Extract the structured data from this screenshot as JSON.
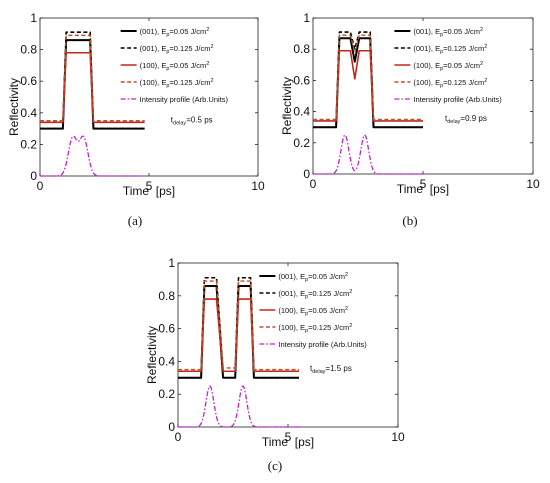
{
  "figure": {
    "background": "#ffffff",
    "series_styles": [
      {
        "color": "#000000",
        "dash": "",
        "width": 2.0
      },
      {
        "color": "#000000",
        "dash": "4,2.5",
        "width": 1.6
      },
      {
        "color": "#c0281c",
        "dash": "",
        "width": 1.6
      },
      {
        "color": "#b8542a",
        "dash": "4,2.5",
        "width": 1.4
      },
      {
        "color": "#c020d0",
        "dash": "5,2,1.5,2",
        "width": 1.3
      }
    ]
  },
  "chart_data": [
    {
      "panel_label": "(a)",
      "type": "line",
      "xlabel": "Time  [ps]",
      "ylabel": "Reflectivity",
      "xlim": [
        0,
        10
      ],
      "ylim": [
        0,
        1
      ],
      "x_ticks": [
        "0",
        "5",
        "10"
      ],
      "y_ticks": [
        "0",
        "0.2",
        "0.4",
        "0.6",
        "0.8",
        "1"
      ],
      "annotation": {
        "text": "t",
        "sub": "delay",
        "suffix": "=0.5 ps"
      },
      "legend_position": "top-right",
      "series": [
        {
          "label": "(001), E",
          "label_sub": "p",
          "label_rest": "=0.05 J/cm",
          "label_sup": "2",
          "x": [
            0,
            1.05,
            1.2,
            2.3,
            2.45,
            4.8
          ],
          "y": [
            0.3,
            0.3,
            0.86,
            0.86,
            0.3,
            0.3
          ]
        },
        {
          "label": "(001), E",
          "label_sub": "p",
          "label_rest": "=0.125 J/cm",
          "label_sup": "2",
          "x": [
            0,
            1.05,
            1.2,
            2.3,
            2.45,
            4.8
          ],
          "y": [
            0.3,
            0.3,
            0.91,
            0.91,
            0.3,
            0.3
          ]
        },
        {
          "label": "(100), E",
          "label_sub": "p",
          "label_rest": "=0.05 J/cm",
          "label_sup": "2",
          "x": [
            0,
            1.05,
            1.2,
            2.3,
            2.45,
            4.8
          ],
          "y": [
            0.34,
            0.34,
            0.78,
            0.78,
            0.34,
            0.34
          ]
        },
        {
          "label": "(100), E",
          "label_sub": "p",
          "label_rest": "=0.125 J/cm",
          "label_sup": "2",
          "x": [
            0,
            1.05,
            1.2,
            2.3,
            2.45,
            4.8
          ],
          "y": [
            0.35,
            0.35,
            0.89,
            0.89,
            0.35,
            0.35
          ]
        },
        {
          "label": "Intensity profile (Arb.Units)",
          "pulses": [
            1.5,
            2.0
          ],
          "pulse_height": 0.24,
          "pulse_sigma": 0.2,
          "x_range": [
            0,
            4.8
          ]
        }
      ]
    },
    {
      "panel_label": "(b)",
      "type": "line",
      "xlabel": "Time  [ps]",
      "ylabel": "Reflectivity",
      "xlim": [
        0,
        10
      ],
      "ylim": [
        0,
        1
      ],
      "x_ticks": [
        "0",
        "5",
        "10"
      ],
      "y_ticks": [
        "0",
        "0.2",
        "0.4",
        "0.6",
        "0.8",
        "1"
      ],
      "annotation": {
        "text": "t",
        "sub": "delay",
        "suffix": "=0.9 ps"
      },
      "legend_position": "top-right",
      "series": [
        {
          "label": "(001), E",
          "label_sub": "p",
          "label_rest": "=0.05 J/cm",
          "label_sup": "2",
          "x": [
            0,
            1.05,
            1.2,
            1.7,
            1.9,
            2.1,
            2.6,
            2.75,
            5
          ],
          "y": [
            0.3,
            0.3,
            0.87,
            0.87,
            0.72,
            0.87,
            0.87,
            0.3,
            0.3
          ]
        },
        {
          "label": "(001), E",
          "label_sub": "p",
          "label_rest": "=0.125 J/cm",
          "label_sup": "2",
          "x": [
            0,
            1.05,
            1.2,
            1.7,
            1.9,
            2.1,
            2.6,
            2.75,
            5
          ],
          "y": [
            0.3,
            0.3,
            0.91,
            0.91,
            0.8,
            0.91,
            0.91,
            0.3,
            0.3
          ]
        },
        {
          "label": "(100), E",
          "label_sub": "p",
          "label_rest": "=0.05 J/cm",
          "label_sup": "2",
          "x": [
            0,
            1.05,
            1.2,
            1.7,
            1.9,
            2.1,
            2.6,
            2.75,
            5
          ],
          "y": [
            0.34,
            0.34,
            0.79,
            0.79,
            0.61,
            0.79,
            0.79,
            0.34,
            0.34
          ]
        },
        {
          "label": "(100), E",
          "label_sub": "p",
          "label_rest": "=0.125 J/cm",
          "label_sup": "2",
          "x": [
            0,
            1.05,
            1.2,
            1.7,
            1.9,
            2.1,
            2.6,
            2.75,
            5
          ],
          "y": [
            0.35,
            0.35,
            0.89,
            0.89,
            0.78,
            0.89,
            0.89,
            0.35,
            0.35
          ]
        },
        {
          "label": "Intensity profile (Arb.Units)",
          "pulses": [
            1.45,
            2.35
          ],
          "pulse_height": 0.25,
          "pulse_sigma": 0.18,
          "x_range": [
            0,
            5
          ]
        }
      ]
    },
    {
      "panel_label": "(c)",
      "type": "line",
      "xlabel": "Time  [ps]",
      "ylabel": "Reflectivity",
      "xlim": [
        0,
        10
      ],
      "ylim": [
        0,
        1
      ],
      "x_ticks": [
        "0",
        "5",
        "10"
      ],
      "y_ticks": [
        "0",
        "0.2",
        "0.4",
        "0.6",
        "0.8",
        "1"
      ],
      "annotation": {
        "text": "t",
        "sub": "delay",
        "suffix": "=1.5 ps"
      },
      "legend_position": "top-right",
      "series": [
        {
          "label": "(001), E",
          "label_sub": "p",
          "label_rest": "=0.05 J/cm",
          "label_sup": "2",
          "x": [
            0,
            1.05,
            1.2,
            1.75,
            2.05,
            2.3,
            2.6,
            2.75,
            3.3,
            3.45,
            5.5
          ],
          "y": [
            0.3,
            0.3,
            0.86,
            0.86,
            0.3,
            0.3,
            0.3,
            0.86,
            0.86,
            0.3,
            0.3
          ]
        },
        {
          "label": "(001), E",
          "label_sub": "p",
          "label_rest": "=0.125 J/cm",
          "label_sup": "2",
          "x": [
            0,
            1.05,
            1.2,
            1.75,
            2.05,
            2.3,
            2.6,
            2.75,
            3.3,
            3.45,
            5.5
          ],
          "y": [
            0.3,
            0.3,
            0.91,
            0.91,
            0.34,
            0.34,
            0.34,
            0.91,
            0.91,
            0.3,
            0.3
          ]
        },
        {
          "label": "(100), E",
          "label_sub": "p",
          "label_rest": "=0.05 J/cm",
          "label_sup": "2",
          "x": [
            0,
            1.05,
            1.2,
            1.75,
            2.05,
            2.3,
            2.6,
            2.75,
            3.3,
            3.45,
            5.5
          ],
          "y": [
            0.34,
            0.34,
            0.78,
            0.78,
            0.34,
            0.34,
            0.34,
            0.78,
            0.78,
            0.34,
            0.34
          ]
        },
        {
          "label": "(100), E",
          "label_sub": "p",
          "label_rest": "=0.125 J/cm",
          "label_sup": "2",
          "x": [
            0,
            1.05,
            1.2,
            1.75,
            2.05,
            2.3,
            2.6,
            2.75,
            3.3,
            3.45,
            5.5
          ],
          "y": [
            0.35,
            0.35,
            0.89,
            0.89,
            0.36,
            0.36,
            0.36,
            0.89,
            0.89,
            0.35,
            0.35
          ]
        },
        {
          "label": "Intensity profile (Arb.Units)",
          "pulses": [
            1.45,
            2.95
          ],
          "pulse_height": 0.25,
          "pulse_sigma": 0.18,
          "x_range": [
            0,
            5.5
          ]
        }
      ]
    }
  ]
}
